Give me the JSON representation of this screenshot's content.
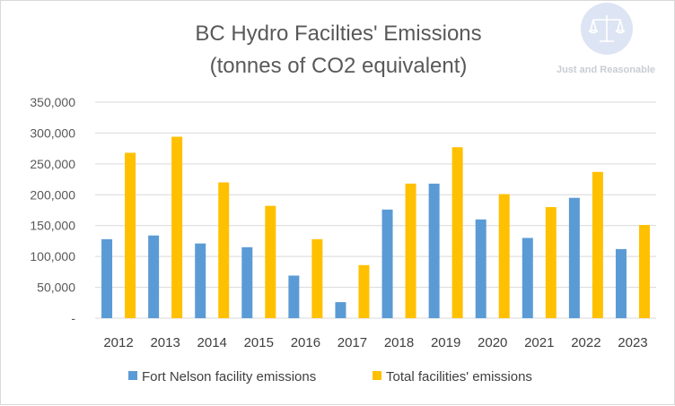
{
  "chart_data": {
    "type": "bar",
    "title_lines": [
      "BC Hydro Facilties' Emissions",
      "(tonnes of CO2 equivalent)"
    ],
    "categories": [
      "2012",
      "2013",
      "2014",
      "2015",
      "2016",
      "2017",
      "2018",
      "2019",
      "2020",
      "2021",
      "2022",
      "2023"
    ],
    "series": [
      {
        "name": "Fort Nelson facility emissions",
        "color": "#5b9bd5",
        "values": [
          128000,
          134000,
          121000,
          115000,
          69000,
          26000,
          176000,
          218000,
          160000,
          130000,
          195000,
          112000
        ]
      },
      {
        "name": "Total facilities' emissions",
        "color": "#ffc000",
        "values": [
          268000,
          294000,
          220000,
          182000,
          128000,
          86000,
          218000,
          277000,
          201000,
          180000,
          237000,
          151000
        ]
      }
    ],
    "y_ticks": [
      0,
      50000,
      100000,
      150000,
      200000,
      250000,
      300000,
      350000
    ],
    "y_tick_labels": [
      "-",
      "50,000",
      "100,000",
      "150,000",
      "200,000",
      "250,000",
      "300,000",
      "350,000"
    ],
    "ylim": [
      0,
      350000
    ],
    "grid": true,
    "legend_position": "bottom"
  },
  "watermark": {
    "text": "Just and Reasonable",
    "icon": "scales-of-justice-icon",
    "colors": {
      "circle": "#dde4f3",
      "icon": "#ffffff"
    }
  }
}
